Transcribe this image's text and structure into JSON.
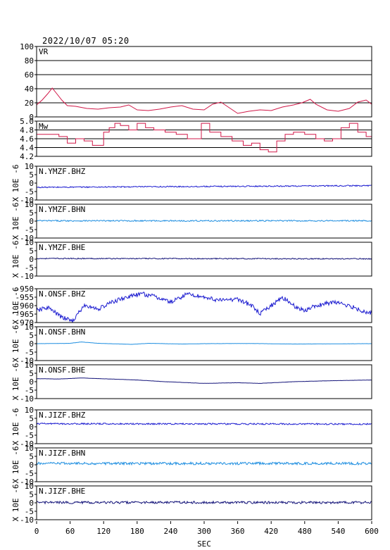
{
  "header": {
    "timestamp": "2022/10/07 05:20"
  },
  "colors": {
    "vr": "#d01848",
    "mw": "#d01848",
    "bhz": "#1c1cd0",
    "bhn": "#1e8ee0",
    "bhe": "#15157a",
    "grid": "#000000"
  },
  "chart_data": {
    "type": "line",
    "xlabel": "SEC",
    "xlim": [
      0,
      600
    ],
    "xticks": [
      "0",
      "60",
      "120",
      "180",
      "240",
      "300",
      "360",
      "420",
      "480",
      "540",
      "600"
    ],
    "panels": [
      {
        "id": "vr",
        "title": "VR",
        "ylabel": "",
        "ylim": [
          0,
          100
        ],
        "yticks": [
          "0",
          "20",
          "40",
          "60",
          "80",
          "100"
        ],
        "grid": true,
        "color_key": "vr",
        "x": [
          0,
          10,
          20,
          28,
          35,
          45,
          55,
          70,
          90,
          110,
          130,
          150,
          165,
          180,
          200,
          220,
          240,
          260,
          280,
          300,
          315,
          330,
          345,
          360,
          380,
          400,
          420,
          440,
          460,
          475,
          490,
          500,
          520,
          540,
          560,
          575,
          590,
          600
        ],
        "y": [
          17,
          24,
          33,
          41,
          34,
          24,
          16,
          15,
          12,
          11,
          13,
          14,
          17,
          10,
          9,
          11,
          14,
          16,
          11,
          10,
          18,
          21,
          13,
          5,
          8,
          10,
          9,
          14,
          17,
          20,
          25,
          18,
          10,
          8,
          12,
          21,
          24,
          18
        ]
      },
      {
        "id": "mw",
        "title": "Mw",
        "ylabel": "",
        "ylim": [
          4.2,
          5.0
        ],
        "yticks": [
          "4.2",
          "4.4",
          "4.6",
          "4.8",
          "5.0"
        ],
        "grid": true,
        "color_key": "mw",
        "x": [
          0,
          20,
          40,
          55,
          70,
          85,
          100,
          120,
          130,
          140,
          150,
          165,
          180,
          195,
          210,
          230,
          250,
          270,
          285,
          295,
          310,
          330,
          350,
          370,
          385,
          400,
          415,
          430,
          445,
          460,
          480,
          500,
          515,
          530,
          545,
          560,
          575,
          590,
          600
        ],
        "y": [
          4.7,
          4.7,
          4.65,
          4.5,
          4.6,
          4.55,
          4.45,
          4.75,
          4.85,
          4.95,
          4.9,
          4.8,
          4.95,
          4.85,
          4.8,
          4.75,
          4.7,
          4.6,
          4.6,
          4.95,
          4.75,
          4.65,
          4.55,
          4.45,
          4.5,
          4.35,
          4.3,
          4.55,
          4.7,
          4.75,
          4.7,
          4.6,
          4.55,
          4.6,
          4.85,
          4.95,
          4.75,
          4.65,
          4.5
        ]
      },
      {
        "id": "ymzf-bhz",
        "title": "N.YMZF.BHZ",
        "ylabel": "X 10E -6",
        "ylim": [
          -10,
          10
        ],
        "yticks": [
          "-10",
          "-5",
          "0",
          "5",
          "10"
        ],
        "grid": false,
        "color_key": "bhz",
        "base": [
          [
            0,
            -2.5
          ],
          [
            600,
            -1.5
          ]
        ],
        "noise": 0.35
      },
      {
        "id": "ymzf-bhn",
        "title": "N.YMZF.BHN",
        "ylabel": "X 10E -6",
        "ylim": [
          -10,
          10
        ],
        "yticks": [
          "-10",
          "-5",
          "0",
          "5",
          "10"
        ],
        "grid": false,
        "color_key": "bhn",
        "base": [
          [
            0,
            0.2
          ],
          [
            600,
            0.2
          ]
        ],
        "noise": 0.4
      },
      {
        "id": "ymzf-bhe",
        "title": "N.YMZF.BHE",
        "ylabel": "X 10E -6",
        "ylim": [
          -10,
          10
        ],
        "yticks": [
          "-10",
          "-5",
          "0",
          "5",
          "10"
        ],
        "grid": false,
        "color_key": "bhe",
        "base": [
          [
            0,
            0.4
          ],
          [
            600,
            0.2
          ]
        ],
        "noise": 0.3
      },
      {
        "id": "onsf-bhz",
        "title": "N.ONSF.BHZ",
        "ylabel": "X 10E -6",
        "ylim": [
          -970,
          -950
        ],
        "yticks": [
          "-970",
          "-965",
          "-960",
          "-955",
          "-950"
        ],
        "grid": false,
        "color_key": "bhz",
        "base": [
          [
            0,
            -963
          ],
          [
            20,
            -961
          ],
          [
            45,
            -967
          ],
          [
            65,
            -969
          ],
          [
            85,
            -960
          ],
          [
            110,
            -962
          ],
          [
            135,
            -958
          ],
          [
            160,
            -955
          ],
          [
            190,
            -953
          ],
          [
            215,
            -955
          ],
          [
            240,
            -958
          ],
          [
            270,
            -953
          ],
          [
            300,
            -955
          ],
          [
            330,
            -957
          ],
          [
            360,
            -956
          ],
          [
            385,
            -960
          ],
          [
            400,
            -965
          ],
          [
            420,
            -960
          ],
          [
            440,
            -955
          ],
          [
            460,
            -960
          ],
          [
            480,
            -963
          ],
          [
            500,
            -960
          ],
          [
            530,
            -958
          ],
          [
            560,
            -960
          ],
          [
            590,
            -964
          ],
          [
            600,
            -964
          ]
        ],
        "noise": 1.3
      },
      {
        "id": "onsf-bhn",
        "title": "N.ONSF.BHN",
        "ylabel": "X 10E -6",
        "ylim": [
          -10,
          10
        ],
        "yticks": [
          "-10",
          "-5",
          "0",
          "5",
          "10"
        ],
        "grid": false,
        "color_key": "bhn",
        "base": [
          [
            0,
            0
          ],
          [
            60,
            0.2
          ],
          [
            80,
            1.0
          ],
          [
            110,
            0.2
          ],
          [
            170,
            -0.4
          ],
          [
            200,
            0.2
          ],
          [
            260,
            -0.2
          ],
          [
            300,
            0
          ],
          [
            380,
            0.1
          ],
          [
            460,
            -0.2
          ],
          [
            600,
            0
          ]
        ],
        "noise": 0.05
      },
      {
        "id": "onsf-bhe",
        "title": "N.ONSF.BHE",
        "ylabel": "X 10E -6",
        "ylim": [
          -10,
          10
        ],
        "yticks": [
          "-10",
          "-5",
          "0",
          "5",
          "10"
        ],
        "grid": false,
        "color_key": "bhe",
        "base": [
          [
            0,
            1.8
          ],
          [
            40,
            1.6
          ],
          [
            80,
            2.2
          ],
          [
            130,
            1.6
          ],
          [
            180,
            1.0
          ],
          [
            230,
            0.0
          ],
          [
            300,
            -1.0
          ],
          [
            360,
            -0.6
          ],
          [
            400,
            -1.0
          ],
          [
            460,
            0.0
          ],
          [
            530,
            0.6
          ],
          [
            600,
            1.0
          ]
        ],
        "noise": 0.05
      },
      {
        "id": "jizf-bhz",
        "title": "N.JIZF.BHZ",
        "ylabel": "X 10E -6",
        "ylim": [
          -10,
          10
        ],
        "yticks": [
          "-10",
          "-5",
          "0",
          "5",
          "10"
        ],
        "grid": false,
        "color_key": "bhz",
        "base": [
          [
            0,
            1.8
          ],
          [
            600,
            1.6
          ]
        ],
        "noise": 0.45
      },
      {
        "id": "jizf-bhn",
        "title": "N.JIZF.BHN",
        "ylabel": "X 10E -6",
        "ylim": [
          -10,
          10
        ],
        "yticks": [
          "-10",
          "-5",
          "0",
          "5",
          "10"
        ],
        "grid": false,
        "color_key": "bhn",
        "base": [
          [
            0,
            0.8
          ],
          [
            600,
            0.8
          ]
        ],
        "noise": 0.75
      },
      {
        "id": "jizf-bhe",
        "title": "N.JIZF.BHE",
        "ylabel": "X 10E -6",
        "ylim": [
          -10,
          10
        ],
        "yticks": [
          "-10",
          "-5",
          "0",
          "5",
          "10"
        ],
        "grid": false,
        "color_key": "bhe",
        "base": [
          [
            0,
            0.2
          ],
          [
            600,
            0.2
          ]
        ],
        "noise": 0.7
      }
    ]
  }
}
